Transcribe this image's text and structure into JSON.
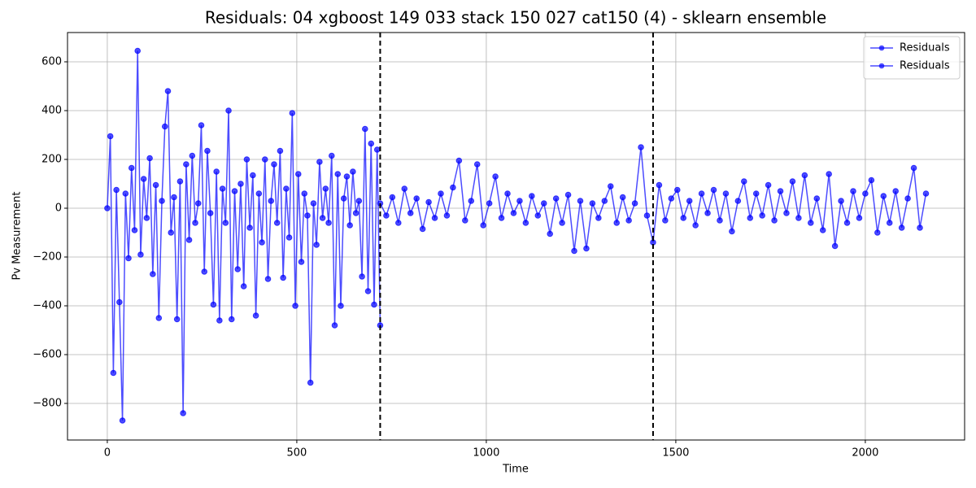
{
  "chart_data": {
    "type": "line",
    "title": "Residuals: 04 xgboost 149 033 stack 150 027 cat150 (4) - sklearn ensemble",
    "x_label": "Time",
    "y_label": "Pv Measurement",
    "xlim": [
      -105,
      2262
    ],
    "ylim": [
      -950,
      720
    ],
    "xticks": [
      0,
      500,
      1000,
      1500,
      2000
    ],
    "yticks": [
      {
        "value": -800,
        "label": "−800"
      },
      {
        "value": -600,
        "label": "−600"
      },
      {
        "value": -400,
        "label": "−400"
      },
      {
        "value": -200,
        "label": "−200"
      },
      0,
      200,
      400,
      600
    ],
    "grid": true,
    "legend": "upper right",
    "vlines": [
      720,
      1440
    ],
    "series": [
      {
        "name": "Residuals",
        "color": "#0000ff",
        "x": [
          0,
          8,
          16,
          24,
          32,
          40,
          48,
          56,
          64,
          72,
          80,
          88,
          96,
          104,
          112,
          120,
          128,
          136,
          144,
          152,
          160,
          168,
          176,
          184,
          192,
          200,
          208,
          216,
          224,
          232,
          240,
          248,
          256,
          264,
          272,
          280,
          288,
          296,
          304,
          312,
          320,
          328,
          336,
          344,
          352,
          360,
          368,
          376,
          384,
          392,
          400,
          408,
          416,
          424,
          432,
          440,
          448,
          456,
          464,
          472,
          480,
          488,
          496,
          504,
          512,
          520,
          528,
          536,
          544,
          552,
          560,
          568,
          576,
          584,
          592,
          600,
          608,
          616,
          624,
          632,
          640,
          648,
          656,
          664,
          672,
          680,
          688,
          696,
          704,
          712,
          720
        ],
        "values": [
          0,
          295,
          -675,
          75,
          -385,
          -870,
          60,
          -205,
          165,
          -90,
          645,
          -190,
          120,
          -40,
          205,
          -270,
          95,
          -450,
          30,
          335,
          480,
          -100,
          45,
          -455,
          110,
          -840,
          180,
          -130,
          215,
          -60,
          20,
          340,
          -260,
          235,
          -20,
          -395,
          150,
          -460,
          80,
          -60,
          400,
          -455,
          70,
          -250,
          100,
          -320,
          200,
          -80,
          135,
          -440,
          60,
          -140,
          200,
          -290,
          30,
          180,
          -60,
          235,
          -285,
          80,
          -120,
          390,
          -400,
          140,
          -220,
          60,
          -30,
          -715,
          20,
          -150,
          190,
          -40,
          80,
          -60,
          215,
          -480,
          140,
          -400,
          40,
          130,
          -70,
          150,
          -20,
          30,
          -280,
          325,
          -340,
          265,
          -395,
          240,
          -480
        ]
      },
      {
        "name": "Residuals",
        "color": "#0000ff",
        "x": [
          720,
          736,
          752,
          768,
          784,
          800,
          816,
          832,
          848,
          864,
          880,
          896,
          912,
          928,
          944,
          960,
          976,
          992,
          1008,
          1024,
          1040,
          1056,
          1072,
          1088,
          1104,
          1120,
          1136,
          1152,
          1168,
          1184,
          1200,
          1216,
          1232,
          1248,
          1264,
          1280,
          1296,
          1312,
          1328,
          1344,
          1360,
          1376,
          1392,
          1408,
          1424,
          1440,
          1456,
          1472,
          1488,
          1504,
          1520,
          1536,
          1552,
          1568,
          1584,
          1600,
          1616,
          1632,
          1648,
          1664,
          1680,
          1696,
          1712,
          1728,
          1744,
          1760,
          1776,
          1792,
          1808,
          1824,
          1840,
          1856,
          1872,
          1888,
          1904,
          1920,
          1936,
          1952,
          1968,
          1984,
          2000,
          2016,
          2032,
          2048,
          2064,
          2080,
          2096,
          2112,
          2128,
          2144,
          2160
        ],
        "values": [
          20,
          -30,
          45,
          -60,
          80,
          -20,
          40,
          -85,
          25,
          -40,
          60,
          -30,
          85,
          195,
          -50,
          30,
          180,
          -70,
          20,
          130,
          -40,
          60,
          -20,
          30,
          -60,
          50,
          -30,
          20,
          -105,
          40,
          -60,
          55,
          -175,
          30,
          -165,
          20,
          -40,
          30,
          90,
          -60,
          45,
          -50,
          20,
          250,
          -30,
          -140,
          95,
          -50,
          40,
          75,
          -40,
          30,
          -70,
          60,
          -20,
          75,
          -50,
          60,
          -95,
          30,
          110,
          -40,
          60,
          -30,
          95,
          -50,
          70,
          -20,
          110,
          -40,
          135,
          -60,
          40,
          -90,
          140,
          -155,
          30,
          -60,
          70,
          -40,
          60,
          115,
          -100,
          50,
          -60,
          70,
          -80,
          40,
          165,
          -80,
          60
        ]
      }
    ]
  }
}
